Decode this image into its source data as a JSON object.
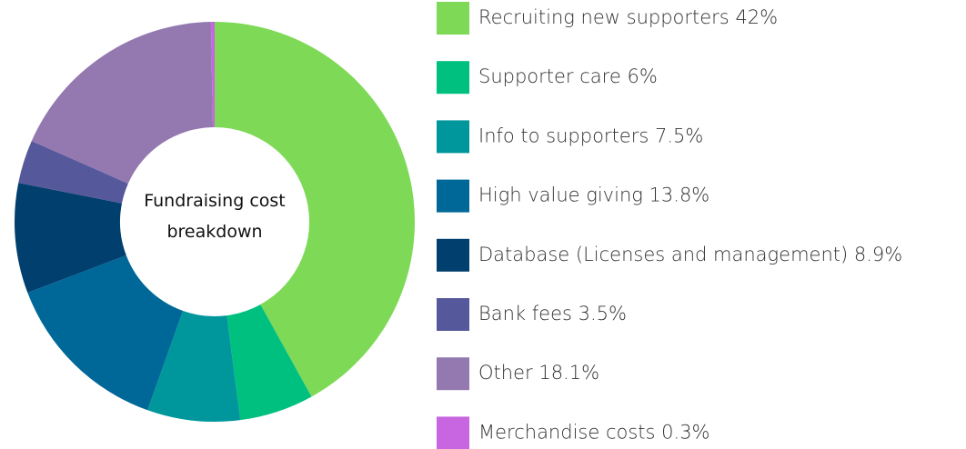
{
  "chart_data": {
    "type": "donut",
    "title": "Fundraising cost breakdown",
    "categories": [
      "Recruiting new supporters",
      "Supporter care",
      "Info to supporters",
      "High value giving",
      "Database (Licenses and management)",
      "Bank fees",
      "Other",
      "Merchandise costs"
    ],
    "values": [
      42,
      6,
      7.5,
      13.8,
      8.9,
      3.5,
      18.1,
      0.3
    ],
    "value_labels": [
      "42%",
      "6%",
      "7.5%",
      "13.8%",
      "8.9%",
      "3.5%",
      "18.1%",
      "0.3%"
    ],
    "colors": [
      "#7ed957",
      "#00c07f",
      "#00979c",
      "#006898",
      "#003f6e",
      "#55589a",
      "#9478b0",
      "#c766e0"
    ]
  }
}
